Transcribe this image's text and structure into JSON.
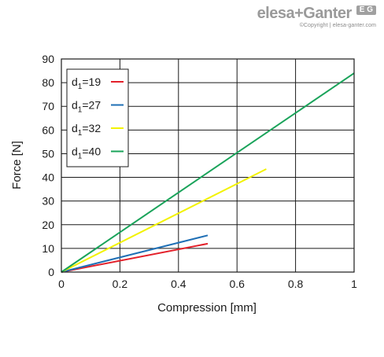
{
  "brand": {
    "logo_text": "elesa+Ganter",
    "badge": "E G",
    "copyright": "©Copyright | elesa-ganter.com"
  },
  "chart_data": {
    "type": "line",
    "xlabel": "Compression [mm]",
    "ylabel": "Force [N]",
    "xlim": [
      0,
      1
    ],
    "ylim": [
      0,
      90
    ],
    "x_ticks": [
      0,
      0.2,
      0.4,
      0.6,
      0.8,
      1
    ],
    "x_tick_labels": [
      "0",
      "0.2",
      "0.4",
      "0.6",
      "0.8",
      "1"
    ],
    "y_ticks": [
      0,
      10,
      20,
      30,
      40,
      50,
      60,
      70,
      80,
      90
    ],
    "y_tick_labels": [
      "0",
      "10",
      "20",
      "30",
      "40",
      "50",
      "60",
      "70",
      "80",
      "90"
    ],
    "grid": true,
    "legend_position": "top-left",
    "series": [
      {
        "name": "d1=19",
        "name_base": "d",
        "name_sub": "1",
        "name_rest": "=19",
        "color": "#e3202a",
        "x": [
          0,
          0.5
        ],
        "y": [
          0,
          12
        ]
      },
      {
        "name": "d1=27",
        "name_base": "d",
        "name_sub": "1",
        "name_rest": "=27",
        "color": "#1f6fb5",
        "x": [
          0,
          0.5
        ],
        "y": [
          0,
          15.5
        ]
      },
      {
        "name": "d1=32",
        "name_base": "d",
        "name_sub": "1",
        "name_rest": "=32",
        "color": "#f2f200",
        "x": [
          0,
          0.7
        ],
        "y": [
          0,
          43.5
        ]
      },
      {
        "name": "d1=40",
        "name_base": "d",
        "name_sub": "1",
        "name_rest": "=40",
        "color": "#1aa35a",
        "x": [
          0,
          1
        ],
        "y": [
          0,
          84
        ]
      }
    ]
  }
}
